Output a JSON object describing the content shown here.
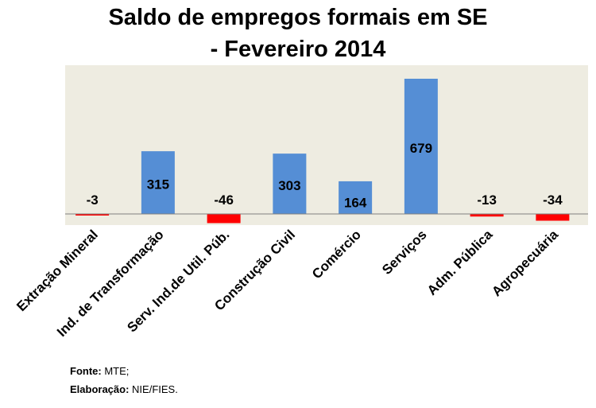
{
  "chart_data": {
    "type": "bar",
    "title_line1": "Saldo de empregos formais em SE",
    "title_line2": "- Fevereiro 2014",
    "xlabel": "",
    "ylabel": "",
    "categories": [
      "Extração Mineral",
      "Ind. de Transformação",
      "Serv. Ind.de Util. Púb.",
      "Construção Civil",
      "Comércio",
      "Serviços",
      "Adm. Pública",
      "Agropecuária"
    ],
    "values": [
      -3,
      315,
      -46,
      303,
      164,
      679,
      -13,
      -34
    ],
    "data_labels": [
      "-3",
      "315",
      "-46",
      "303",
      "164",
      "679",
      "-13",
      "-34"
    ],
    "ylim": [
      -50,
      730
    ],
    "grid": false,
    "legend": "none",
    "colors": {
      "positive": "#558ED5",
      "negative": "#FF0000",
      "plot_bg": "#EEECE1",
      "axis": "#808080"
    }
  },
  "source": {
    "label": "Fonte:",
    "value": " MTE;"
  },
  "credit": {
    "label": "Elaboração:",
    "value": " NIE/FIES."
  }
}
